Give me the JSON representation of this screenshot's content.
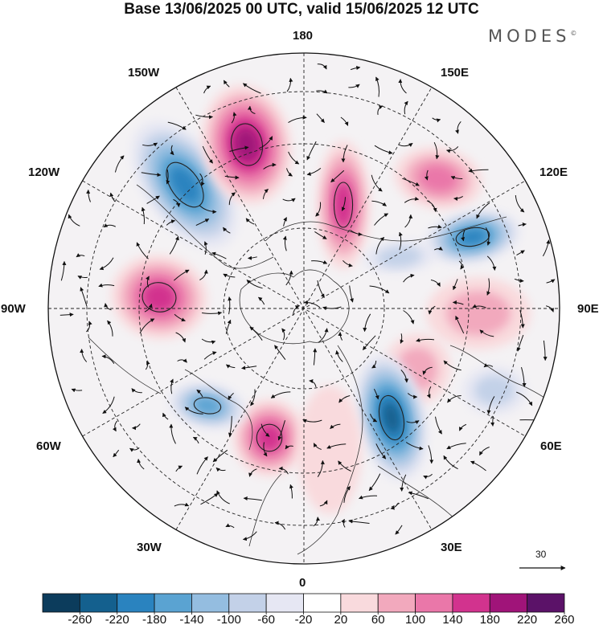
{
  "title": "Base 13/06/2025 00 UTC, valid 15/06/2025 12 UTC",
  "brand": "MODES",
  "brand_mark": "©",
  "longitude_labels": {
    "top": "180",
    "upper_right": "150E",
    "upper_left": "150W",
    "right_high": "120E",
    "left_high": "120W",
    "right": "90E",
    "left": "90W",
    "right_low": "60E",
    "left_low": "60W",
    "lower_right": "30E",
    "lower_left": "30W",
    "bottom": "0"
  },
  "reference_vector": {
    "value": "30"
  },
  "colorbar": {
    "ticks": [
      "-260",
      "-220",
      "-180",
      "-140",
      "-100",
      "-60",
      "-20",
      "20",
      "60",
      "100",
      "140",
      "180",
      "220",
      "260"
    ],
    "colors": [
      "#0c3c5c",
      "#14608e",
      "#2a83bf",
      "#5aa3d2",
      "#94bde0",
      "#c3d1e8",
      "#e6e7f3",
      "#ffffff",
      "#f9dadd",
      "#f2a9bd",
      "#ea77a9",
      "#d2338e",
      "#a01479",
      "#5b1268"
    ]
  },
  "anomaly_centers": [
    {
      "sign": "negative",
      "strength": 200
    },
    {
      "sign": "positive",
      "strength": 200
    },
    {
      "sign": "positive",
      "strength": 160
    },
    {
      "sign": "positive",
      "strength": 120
    },
    {
      "sign": "negative",
      "strength": 200
    },
    {
      "sign": "negative",
      "strength": 100
    },
    {
      "sign": "positive",
      "strength": 160
    },
    {
      "sign": "positive",
      "strength": 100
    },
    {
      "sign": "positive",
      "strength": 100
    },
    {
      "sign": "negative",
      "strength": 240
    },
    {
      "sign": "positive",
      "strength": 160
    },
    {
      "sign": "negative",
      "strength": 160
    },
    {
      "sign": "negative",
      "strength": 100
    },
    {
      "sign": "positive",
      "strength": 60
    }
  ]
}
